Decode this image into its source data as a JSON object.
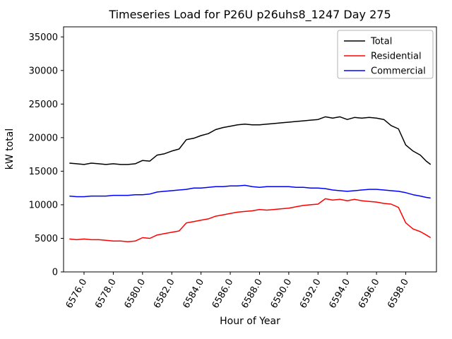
{
  "figure": {
    "title": "Timeseries Load for P26U p26uhs8_1247  Day 275",
    "xlabel": "Hour of Year",
    "ylabel": "kW total"
  },
  "chart_data": {
    "type": "line",
    "title": "Timeseries Load for P26U p26uhs8_1247  Day 275",
    "xlabel": "Hour of Year",
    "ylabel": "kW total",
    "xlim": [
      6574.6,
      6600.1
    ],
    "ylim": [
      0,
      36500
    ],
    "grid": false,
    "legend": {
      "position": "upper right",
      "entries": [
        "Total",
        "Residential",
        "Commercial"
      ]
    },
    "xticks": [
      {
        "v": 6576,
        "label": "6576.0"
      },
      {
        "v": 6578,
        "label": "6578.0"
      },
      {
        "v": 6580,
        "label": "6580.0"
      },
      {
        "v": 6582,
        "label": "6582.0"
      },
      {
        "v": 6584,
        "label": "6584.0"
      },
      {
        "v": 6586,
        "label": "6586.0"
      },
      {
        "v": 6588,
        "label": "6588.0"
      },
      {
        "v": 6590,
        "label": "6590.0"
      },
      {
        "v": 6592,
        "label": "6592.0"
      },
      {
        "v": 6594,
        "label": "6594.0"
      },
      {
        "v": 6596,
        "label": "6596.0"
      },
      {
        "v": 6598,
        "label": "6598.0"
      }
    ],
    "yticks": [
      {
        "v": 0,
        "label": "0"
      },
      {
        "v": 5000,
        "label": "5000"
      },
      {
        "v": 10000,
        "label": "10000"
      },
      {
        "v": 15000,
        "label": "15000"
      },
      {
        "v": 20000,
        "label": "20000"
      },
      {
        "v": 25000,
        "label": "25000"
      },
      {
        "v": 30000,
        "label": "30000"
      },
      {
        "v": 35000,
        "label": "35000"
      }
    ],
    "series": [
      {
        "name": "Total",
        "color": "#000000",
        "points": [
          [
            6575,
            16200
          ],
          [
            6575.5,
            16100
          ],
          [
            6576,
            16000
          ],
          [
            6576.5,
            16200
          ],
          [
            6577,
            16100
          ],
          [
            6577.5,
            16000
          ],
          [
            6578,
            16100
          ],
          [
            6578.5,
            16000
          ],
          [
            6579,
            16000
          ],
          [
            6579.5,
            16100
          ],
          [
            6580,
            16600
          ],
          [
            6580.5,
            16500
          ],
          [
            6581,
            17400
          ],
          [
            6581.5,
            17600
          ],
          [
            6582,
            18000
          ],
          [
            6582.5,
            18300
          ],
          [
            6583,
            19700
          ],
          [
            6583.5,
            19900
          ],
          [
            6584,
            20300
          ],
          [
            6584.5,
            20600
          ],
          [
            6585,
            21200
          ],
          [
            6585.5,
            21500
          ],
          [
            6586,
            21700
          ],
          [
            6586.5,
            21900
          ],
          [
            6587,
            22000
          ],
          [
            6587.5,
            21900
          ],
          [
            6588,
            21900
          ],
          [
            6588.5,
            22000
          ],
          [
            6589,
            22100
          ],
          [
            6589.5,
            22200
          ],
          [
            6590,
            22300
          ],
          [
            6590.5,
            22400
          ],
          [
            6591,
            22500
          ],
          [
            6591.5,
            22600
          ],
          [
            6592,
            22700
          ],
          [
            6592.5,
            23100
          ],
          [
            6593,
            22900
          ],
          [
            6593.5,
            23100
          ],
          [
            6594,
            22700
          ],
          [
            6594.5,
            23000
          ],
          [
            6595,
            22900
          ],
          [
            6595.5,
            23000
          ],
          [
            6596,
            22900
          ],
          [
            6596.5,
            22700
          ],
          [
            6597,
            21800
          ],
          [
            6597.5,
            21300
          ],
          [
            6598,
            18900
          ],
          [
            6598.5,
            18000
          ],
          [
            6599,
            17400
          ],
          [
            6599.4,
            16500
          ],
          [
            6599.7,
            16000
          ]
        ]
      },
      {
        "name": "Residential",
        "color": "#ff0000",
        "points": [
          [
            6575,
            4900
          ],
          [
            6575.5,
            4800
          ],
          [
            6576,
            4900
          ],
          [
            6576.5,
            4800
          ],
          [
            6577,
            4800
          ],
          [
            6577.5,
            4700
          ],
          [
            6578,
            4600
          ],
          [
            6578.5,
            4600
          ],
          [
            6579,
            4500
          ],
          [
            6579.5,
            4600
          ],
          [
            6580,
            5100
          ],
          [
            6580.5,
            5000
          ],
          [
            6581,
            5500
          ],
          [
            6581.5,
            5700
          ],
          [
            6582,
            5900
          ],
          [
            6582.5,
            6100
          ],
          [
            6583,
            7300
          ],
          [
            6583.5,
            7500
          ],
          [
            6584,
            7700
          ],
          [
            6584.5,
            7900
          ],
          [
            6585,
            8300
          ],
          [
            6585.5,
            8500
          ],
          [
            6586,
            8700
          ],
          [
            6586.5,
            8900
          ],
          [
            6587,
            9000
          ],
          [
            6587.5,
            9100
          ],
          [
            6588,
            9300
          ],
          [
            6588.5,
            9200
          ],
          [
            6589,
            9300
          ],
          [
            6589.5,
            9400
          ],
          [
            6590,
            9500
          ],
          [
            6590.5,
            9700
          ],
          [
            6591,
            9900
          ],
          [
            6591.5,
            10000
          ],
          [
            6592,
            10100
          ],
          [
            6592.5,
            10900
          ],
          [
            6593,
            10700
          ],
          [
            6593.5,
            10800
          ],
          [
            6594,
            10600
          ],
          [
            6594.5,
            10800
          ],
          [
            6595,
            10600
          ],
          [
            6595.5,
            10500
          ],
          [
            6596,
            10400
          ],
          [
            6596.5,
            10200
          ],
          [
            6597,
            10100
          ],
          [
            6597.5,
            9600
          ],
          [
            6598,
            7300
          ],
          [
            6598.5,
            6400
          ],
          [
            6599,
            6000
          ],
          [
            6599.4,
            5500
          ],
          [
            6599.7,
            5100
          ]
        ]
      },
      {
        "name": "Commercial",
        "color": "#0000ff",
        "points": [
          [
            6575,
            11300
          ],
          [
            6575.5,
            11200
          ],
          [
            6576,
            11200
          ],
          [
            6576.5,
            11300
          ],
          [
            6577,
            11300
          ],
          [
            6577.5,
            11300
          ],
          [
            6578,
            11400
          ],
          [
            6578.5,
            11400
          ],
          [
            6579,
            11400
          ],
          [
            6579.5,
            11500
          ],
          [
            6580,
            11500
          ],
          [
            6580.5,
            11600
          ],
          [
            6581,
            11900
          ],
          [
            6581.5,
            12000
          ],
          [
            6582,
            12100
          ],
          [
            6582.5,
            12200
          ],
          [
            6583,
            12300
          ],
          [
            6583.5,
            12500
          ],
          [
            6584,
            12500
          ],
          [
            6584.5,
            12600
          ],
          [
            6585,
            12700
          ],
          [
            6585.5,
            12700
          ],
          [
            6586,
            12800
          ],
          [
            6586.5,
            12800
          ],
          [
            6587,
            12900
          ],
          [
            6587.5,
            12700
          ],
          [
            6588,
            12600
          ],
          [
            6588.5,
            12700
          ],
          [
            6589,
            12700
          ],
          [
            6589.5,
            12700
          ],
          [
            6590,
            12700
          ],
          [
            6590.5,
            12600
          ],
          [
            6591,
            12600
          ],
          [
            6591.5,
            12500
          ],
          [
            6592,
            12500
          ],
          [
            6592.5,
            12400
          ],
          [
            6593,
            12200
          ],
          [
            6593.5,
            12100
          ],
          [
            6594,
            12000
          ],
          [
            6594.5,
            12100
          ],
          [
            6595,
            12200
          ],
          [
            6595.5,
            12300
          ],
          [
            6596,
            12300
          ],
          [
            6596.5,
            12200
          ],
          [
            6597,
            12100
          ],
          [
            6597.5,
            12000
          ],
          [
            6598,
            11800
          ],
          [
            6598.5,
            11500
          ],
          [
            6599,
            11300
          ],
          [
            6599.4,
            11100
          ],
          [
            6599.7,
            11000
          ]
        ]
      }
    ]
  }
}
